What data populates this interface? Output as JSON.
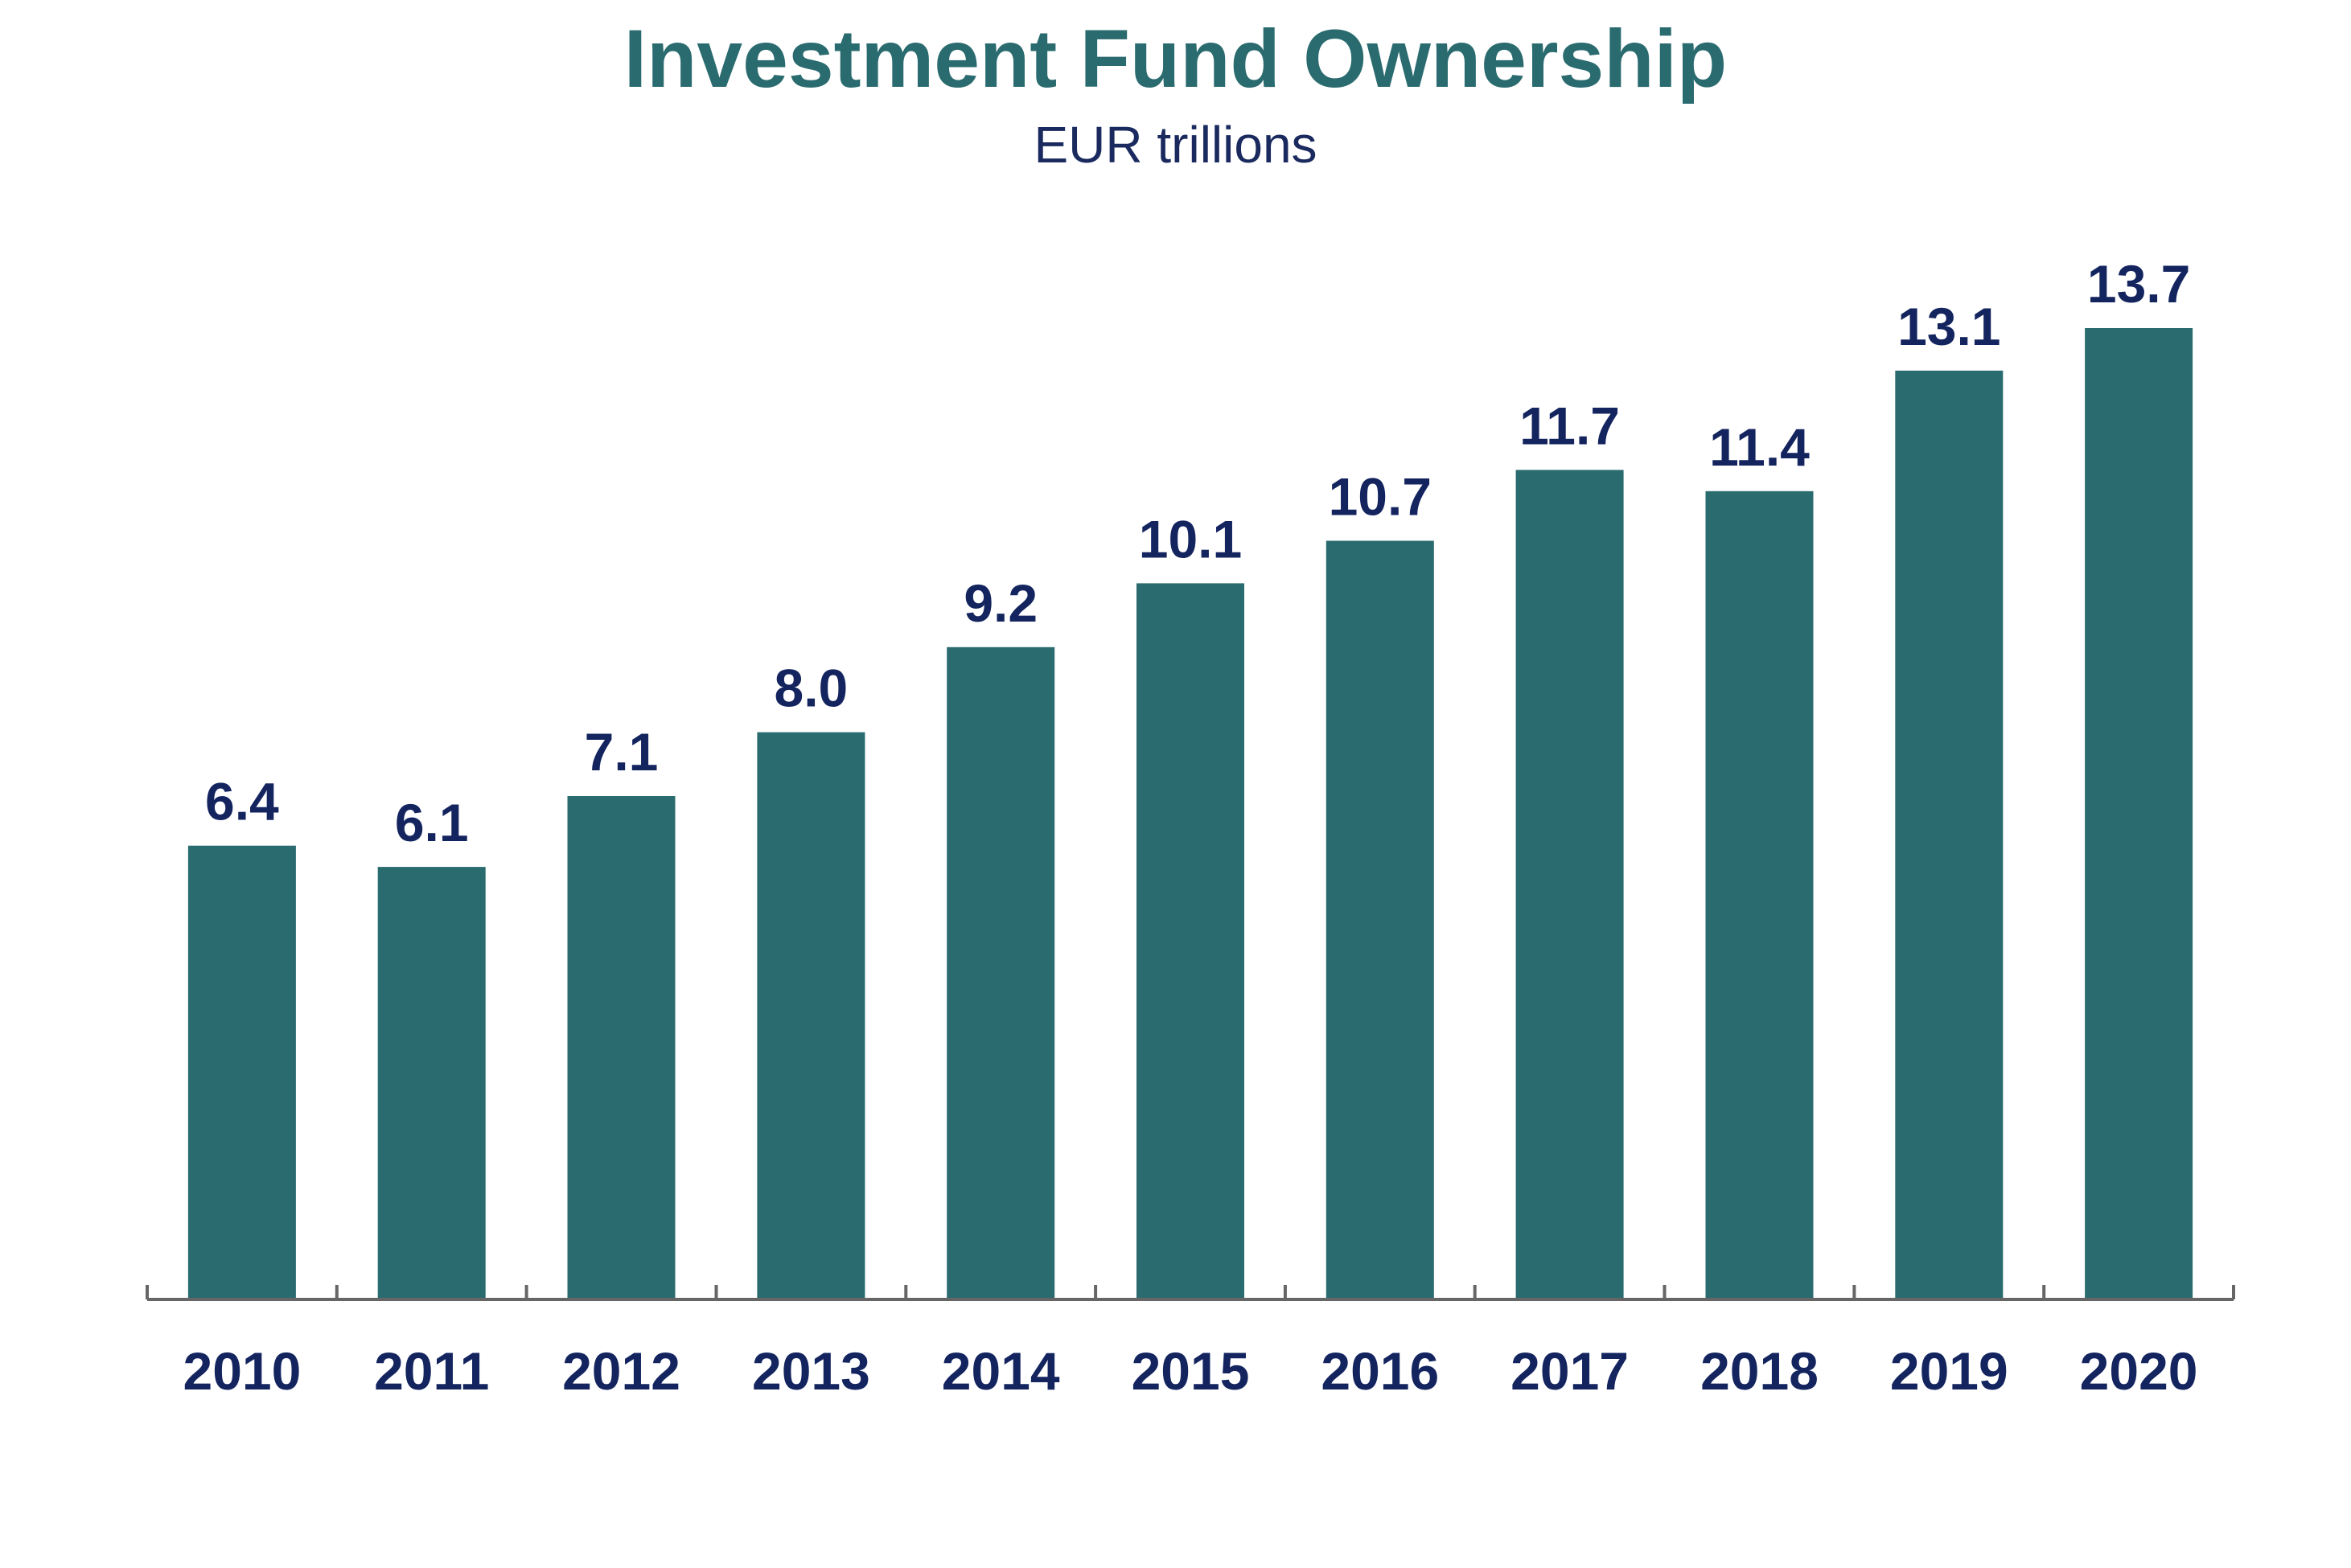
{
  "colors": {
    "title": "#2a6b6f",
    "subtitle": "#1a2a5e",
    "bar": "#2a6b6f",
    "label": "#13245f",
    "axis": "#666666"
  },
  "chart_data": {
    "type": "bar",
    "title": "Investment Fund Ownership",
    "subtitle": "EUR trillions",
    "xlabel": "",
    "ylabel": "",
    "categories": [
      "2010",
      "2011",
      "2012",
      "2013",
      "2014",
      "2015",
      "2016",
      "2017",
      "2018",
      "2019",
      "2020"
    ],
    "values": [
      6.4,
      6.1,
      7.1,
      8.0,
      9.2,
      10.1,
      10.7,
      11.7,
      11.4,
      13.1,
      13.7
    ],
    "value_labels": [
      "6.4",
      "6.1",
      "7.1",
      "8.0",
      "9.2",
      "10.1",
      "10.7",
      "11.7",
      "11.4",
      "13.1",
      "13.7"
    ],
    "ylim": [
      0,
      13.7
    ],
    "grid": false,
    "legend": "none"
  }
}
